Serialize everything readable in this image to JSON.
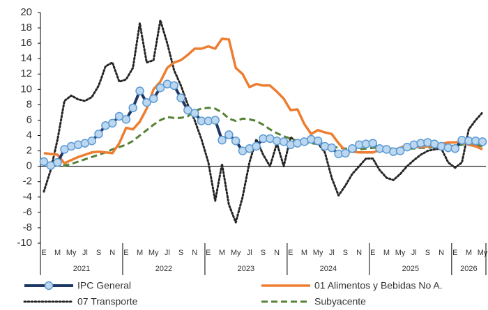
{
  "chart_data": {
    "type": "line",
    "categories": [
      "E",
      null,
      "M",
      null,
      "My",
      null,
      "Jl",
      null,
      "S",
      null,
      "N",
      null,
      "E",
      null,
      "M",
      null,
      "My",
      null,
      "Jl",
      null,
      "S",
      null,
      "N",
      null,
      "E",
      null,
      "M",
      null,
      "My",
      null,
      "Jl",
      null,
      "S",
      null,
      "N",
      null,
      "E",
      null,
      "M",
      null,
      "My",
      null,
      "Jl",
      null,
      "S",
      null,
      "N",
      null,
      "E",
      null,
      "M",
      null,
      "My",
      null,
      "Jl",
      null,
      "S",
      null,
      "N",
      null,
      "E",
      null,
      "M",
      null,
      "My"
    ],
    "years": [
      "2021",
      "2022",
      "2023",
      "2024",
      "2025",
      "2026"
    ],
    "ylim": [
      -10,
      20
    ],
    "yticks": [
      -10,
      -8,
      -6,
      -4,
      -2,
      0,
      2,
      4,
      6,
      8,
      10,
      12,
      14,
      16,
      18,
      20
    ],
    "grid": false,
    "legend": "bottom",
    "series": [
      {
        "name": "IPC General",
        "color": "#1f3864",
        "marker_color": "#bdd7ee",
        "marker_edge": "#5b9bd5",
        "style": "solid",
        "markers": true,
        "values": [
          0.6,
          0.1,
          0.5,
          2.2,
          2.6,
          2.8,
          3.0,
          3.3,
          4.2,
          5.3,
          5.6,
          6.5,
          6.1,
          7.6,
          9.8,
          8.3,
          8.8,
          10.2,
          10.7,
          10.5,
          8.9,
          7.3,
          6.9,
          5.9,
          5.9,
          6.0,
          3.4,
          4.1,
          3.3,
          2.0,
          2.3,
          2.6,
          3.6,
          3.6,
          3.3,
          3.2,
          2.8,
          3.0,
          3.2,
          3.5,
          3.3,
          2.6,
          2.4,
          1.6,
          1.7,
          2.3,
          2.8,
          2.9,
          3.0,
          2.3,
          2.2,
          1.9,
          2.0,
          2.5,
          2.8,
          3.0,
          3.1,
          2.9,
          2.6,
          2.4,
          2.3,
          3.4,
          3.3,
          3.3,
          3.2
        ]
      },
      {
        "name": "01 Alimentos y Bebidas No A.",
        "color": "#ed7d31",
        "style": "solid",
        "markers": false,
        "values": [
          1.7,
          1.6,
          1.5,
          0.4,
          0.8,
          1.2,
          1.5,
          1.8,
          1.9,
          1.8,
          1.7,
          3.0,
          5.0,
          4.8,
          5.8,
          7.5,
          10.0,
          11.0,
          12.8,
          13.5,
          13.8,
          14.5,
          15.3,
          15.3,
          15.6,
          15.3,
          16.6,
          16.5,
          12.8,
          12.0,
          10.3,
          10.7,
          10.5,
          10.5,
          9.7,
          8.8,
          7.3,
          7.4,
          5.5,
          4.2,
          4.7,
          4.4,
          4.2,
          3.0,
          2.0,
          1.9,
          1.8,
          1.8,
          1.8,
          2.1,
          2.1,
          2.1,
          2.4,
          2.8,
          2.5,
          2.5,
          2.6,
          2.6,
          2.9,
          3.1,
          3.1,
          3.2,
          2.8,
          2.6,
          2.2
        ]
      },
      {
        "name": "07 Transporte",
        "color": "#262626",
        "style": "dotted",
        "markers": false,
        "values": [
          -3.3,
          -0.5,
          3.5,
          8.5,
          9.2,
          8.7,
          8.5,
          9.0,
          10.5,
          13.0,
          13.5,
          11.0,
          11.3,
          12.8,
          18.6,
          13.5,
          13.8,
          19.0,
          16.0,
          12.5,
          10.5,
          8.0,
          6.0,
          3.5,
          0.5,
          -4.5,
          0.3,
          -5.0,
          -7.3,
          -4.0,
          0.5,
          3.5,
          1.5,
          0.0,
          3.0,
          0.0,
          3.8,
          3.0,
          3.3,
          3.6,
          3.0,
          1.8,
          -1.5,
          -3.8,
          -2.5,
          -1.0,
          0.0,
          1.0,
          1.0,
          -0.5,
          -1.5,
          -1.8,
          -1.0,
          0.0,
          0.8,
          1.5,
          2.0,
          2.2,
          2.3,
          0.5,
          -0.2,
          0.5,
          4.8,
          6.0,
          7.0
        ]
      },
      {
        "name": "Subyacente",
        "color": "#548235",
        "style": "dashed",
        "markers": false,
        "values": [
          0.5,
          0.3,
          0.1,
          0.1,
          0.3,
          0.6,
          0.9,
          1.2,
          1.5,
          1.8,
          2.2,
          2.5,
          2.8,
          3.3,
          4.0,
          4.7,
          5.4,
          6.0,
          6.4,
          6.3,
          6.3,
          6.5,
          7.2,
          7.5,
          7.6,
          7.5,
          7.0,
          6.2,
          5.9,
          6.2,
          6.1,
          5.9,
          5.4,
          4.8,
          4.3,
          3.9,
          3.6,
          3.3,
          3.0,
          3.0,
          2.9,
          2.8,
          2.6,
          2.4,
          2.3,
          2.2,
          2.2,
          2.3,
          2.4,
          2.4,
          2.3,
          2.3,
          2.2,
          2.3,
          2.3,
          2.4,
          2.4,
          2.5,
          2.6,
          2.6,
          2.7,
          2.8,
          2.9,
          2.8,
          2.6
        ]
      }
    ]
  }
}
